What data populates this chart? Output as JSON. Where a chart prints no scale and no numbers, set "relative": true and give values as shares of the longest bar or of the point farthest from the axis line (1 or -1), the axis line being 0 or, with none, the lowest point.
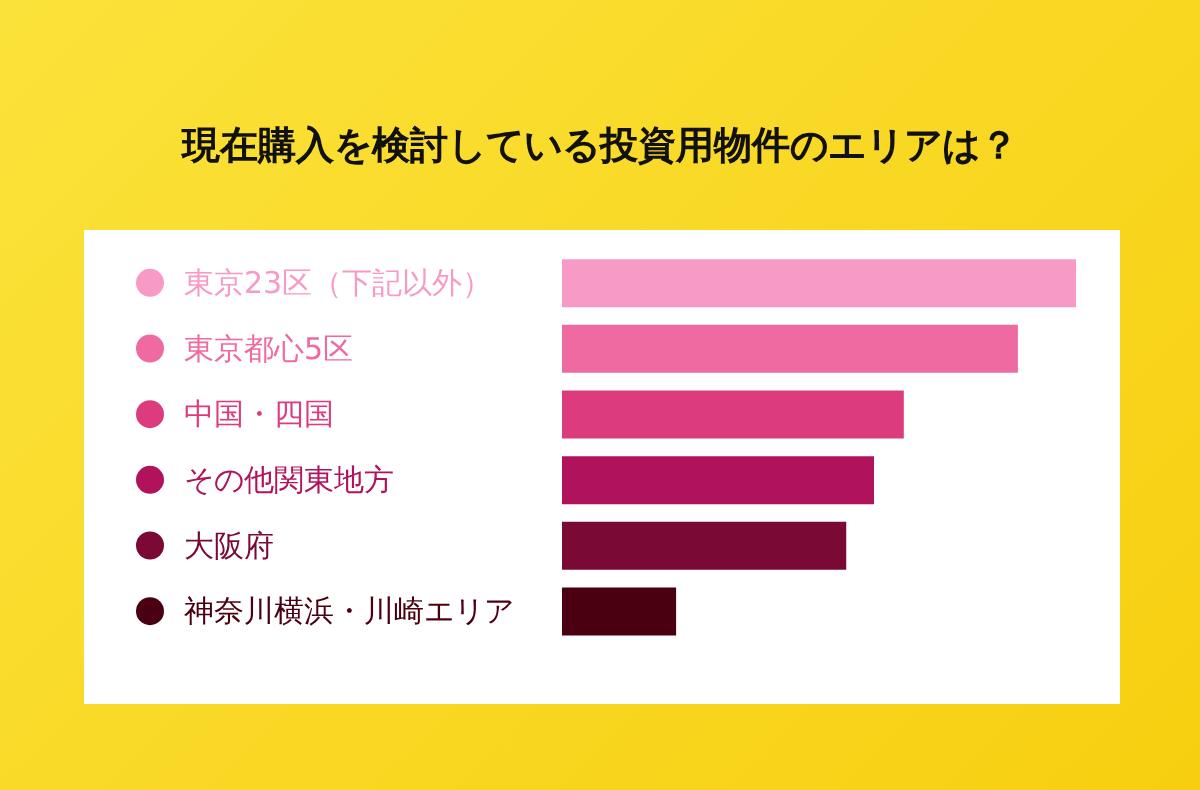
{
  "chart_data": {
    "type": "bar",
    "title": "現在購入を検討している投資用物件のエリアは？",
    "orientation": "horizontal",
    "relative": true,
    "categories": [
      "東京23区（下記以外）",
      "東京都心5区",
      "中国・四国",
      "その他関東地方",
      "大阪府",
      "神奈川横浜・川崎エリア"
    ],
    "values": [
      1,
      0.887,
      0.665,
      0.607,
      0.553,
      0.222
    ],
    "colors": [
      "#f79ac6",
      "#f06aa2",
      "#dc3c7e",
      "#b0135c",
      "#7a0a35",
      "#4a0010"
    ]
  }
}
